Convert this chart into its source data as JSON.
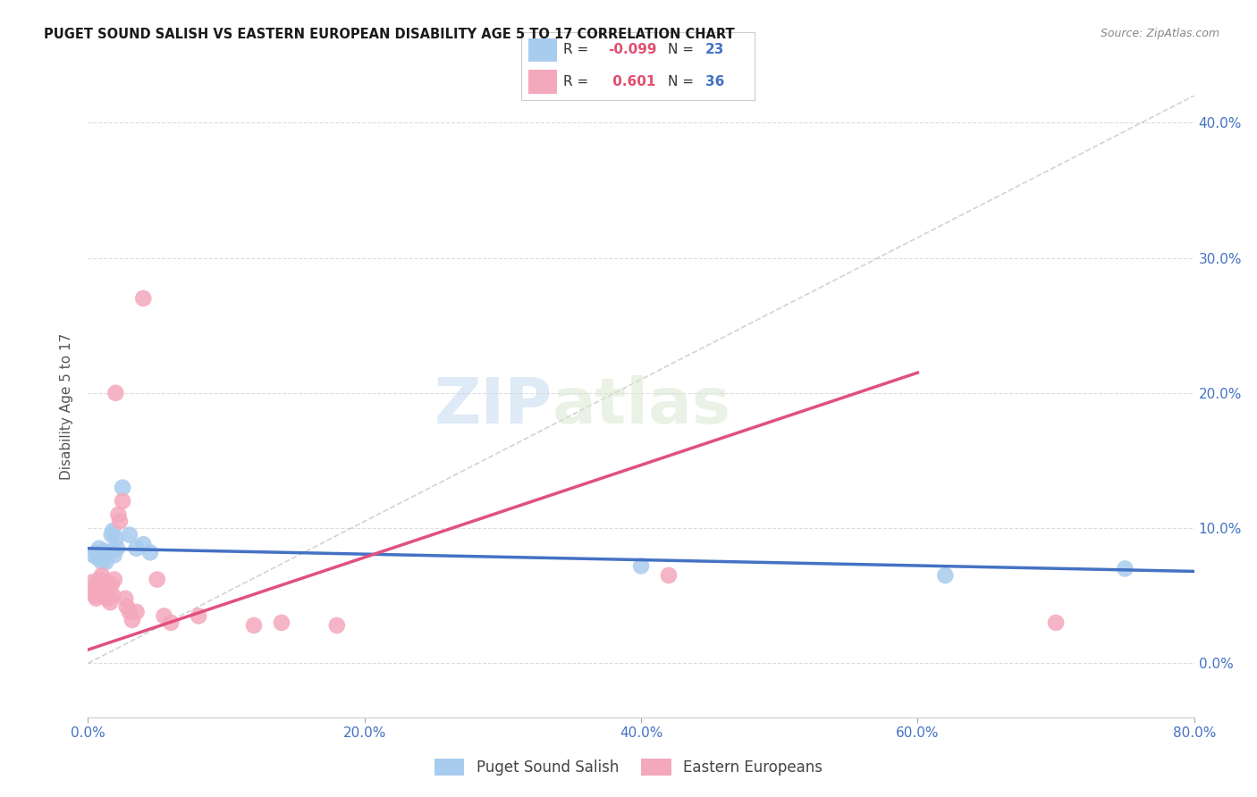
{
  "title": "PUGET SOUND SALISH VS EASTERN EUROPEAN DISABILITY AGE 5 TO 17 CORRELATION CHART",
  "source": "Source: ZipAtlas.com",
  "ylabel": "Disability Age 5 to 17",
  "xlim": [
    0.0,
    0.8
  ],
  "ylim": [
    -0.04,
    0.42
  ],
  "xticks": [
    0.0,
    0.2,
    0.4,
    0.6,
    0.8
  ],
  "yticks": [
    0.0,
    0.1,
    0.2,
    0.3,
    0.4
  ],
  "ytick_labels": [
    "0.0%",
    "10.0%",
    "20.0%",
    "30.0%",
    "40.0%"
  ],
  "xtick_labels": [
    "0.0%",
    "20.0%",
    "40.0%",
    "60.0%",
    "80.0%"
  ],
  "color_blue": "#A8CCEE",
  "color_pink": "#F4A8BC",
  "color_blue_line": "#4472C4",
  "color_pink_line": "#E05080",
  "color_diag": "#C8C8C8",
  "watermark_zip": "ZIP",
  "watermark_atlas": "atlas",
  "blue_r": "-0.099",
  "blue_n": "23",
  "pink_r": "0.601",
  "pink_n": "36",
  "blue_scatter_x": [
    0.004,
    0.006,
    0.007,
    0.008,
    0.009,
    0.01,
    0.011,
    0.012,
    0.013,
    0.015,
    0.017,
    0.018,
    0.019,
    0.02,
    0.021,
    0.025,
    0.03,
    0.035,
    0.04,
    0.045,
    0.4,
    0.62,
    0.75
  ],
  "blue_scatter_y": [
    0.08,
    0.082,
    0.078,
    0.085,
    0.082,
    0.075,
    0.08,
    0.083,
    0.075,
    0.082,
    0.095,
    0.098,
    0.08,
    0.092,
    0.085,
    0.13,
    0.095,
    0.085,
    0.088,
    0.082,
    0.072,
    0.065,
    0.07
  ],
  "pink_scatter_x": [
    0.003,
    0.004,
    0.005,
    0.006,
    0.007,
    0.008,
    0.009,
    0.01,
    0.011,
    0.012,
    0.013,
    0.014,
    0.015,
    0.016,
    0.017,
    0.018,
    0.019,
    0.02,
    0.022,
    0.023,
    0.025,
    0.027,
    0.028,
    0.03,
    0.032,
    0.035,
    0.04,
    0.05,
    0.055,
    0.06,
    0.08,
    0.12,
    0.14,
    0.18,
    0.42,
    0.7
  ],
  "pink_scatter_y": [
    0.06,
    0.055,
    0.05,
    0.048,
    0.058,
    0.062,
    0.052,
    0.065,
    0.058,
    0.055,
    0.06,
    0.048,
    0.052,
    0.045,
    0.058,
    0.05,
    0.062,
    0.2,
    0.11,
    0.105,
    0.12,
    0.048,
    0.042,
    0.038,
    0.032,
    0.038,
    0.27,
    0.062,
    0.035,
    0.03,
    0.035,
    0.028,
    0.03,
    0.028,
    0.065,
    0.03
  ],
  "blue_line_x": [
    0.0,
    0.8
  ],
  "blue_line_y": [
    0.085,
    0.068
  ],
  "pink_line_x": [
    0.0,
    0.6
  ],
  "pink_line_y": [
    0.01,
    0.215
  ],
  "diag_line_x": [
    0.0,
    0.8
  ],
  "diag_line_y": [
    0.0,
    0.42
  ]
}
